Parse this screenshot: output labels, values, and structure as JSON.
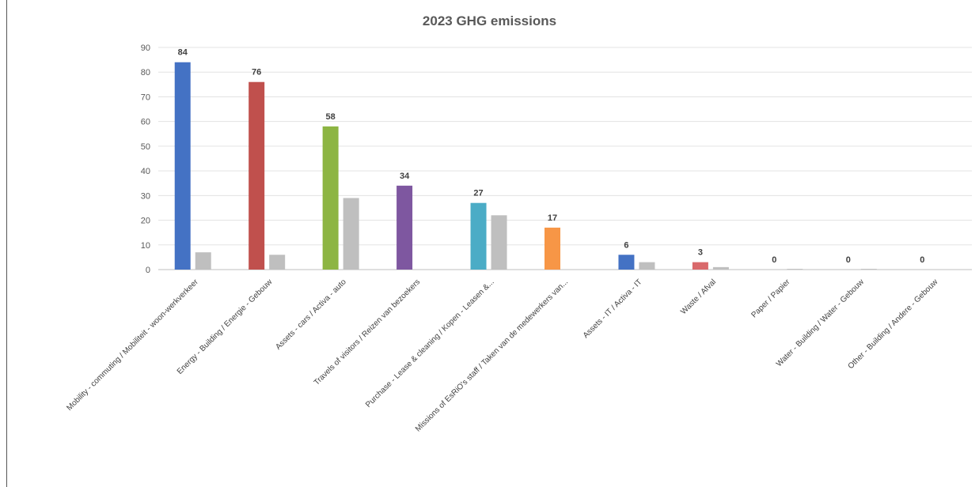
{
  "chart_data": {
    "type": "bar",
    "title": "2023 GHG emissions",
    "xlabel": "",
    "ylabel": "",
    "ylim": [
      0,
      90
    ],
    "yticks": [
      0,
      10,
      20,
      30,
      40,
      50,
      60,
      70,
      80,
      90
    ],
    "grid": true,
    "legend": "none",
    "categories": [
      "Mobility - commuting / Mobiliteit - woon-werkverkeer",
      "Energy - Building / Energie - Gebouw",
      "Assets - cars / Activa - auto",
      "Travels of visitors / Reizen van bezoekers",
      "Purchase - Lease & cleaning / Kopen - Leasen &...",
      "Missions of EsRiO's staff / Taken van de medewerkers van...",
      "Assets - IT / Activa - IT",
      "Waste / Afval",
      "Paper / Papier",
      "Water - Building / Water - Gebouw",
      "Other - Building / Andere - Gebouw"
    ],
    "series": [
      {
        "values": [
          84,
          76,
          58,
          34,
          27,
          17,
          6,
          3,
          0,
          0,
          0
        ],
        "data_labels": [
          "84",
          "76",
          "58",
          "34",
          "27",
          "17",
          "6",
          "3",
          "0",
          "0",
          "0"
        ],
        "colors": [
          "#4472C4",
          "#C0504D",
          "#8DB543",
          "#7E57A0",
          "#4BACC6",
          "#F79646",
          "#4472C4",
          "#D9696B",
          "#8EA9DB",
          "#8EA9DB",
          "#8EA9DB"
        ]
      },
      {
        "values": [
          7,
          6,
          29,
          0,
          22,
          0,
          3,
          1,
          0.3,
          0.3,
          0
        ],
        "color": "#BFBFBF"
      }
    ]
  }
}
